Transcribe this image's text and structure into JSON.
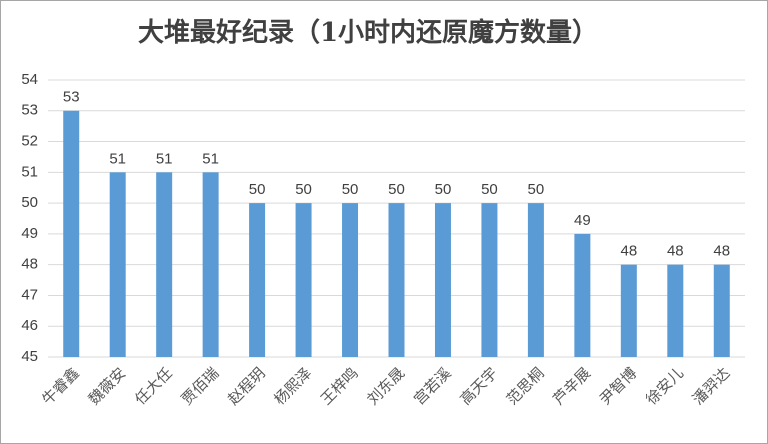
{
  "chart_data": {
    "type": "bar",
    "title": "大堆最好纪录（1小时内还原魔方数量）",
    "categories": [
      "牛睿鑫",
      "魏薇安",
      "任大任",
      "贾佰瑞",
      "赵程玥",
      "杨熙泽",
      "王梓鸣",
      "刘东晟",
      "宫若溪",
      "高天宇",
      "范思桐",
      "芦辛展",
      "尹智博",
      "徐安儿",
      "潘羿达"
    ],
    "values": [
      53,
      51,
      51,
      51,
      50,
      50,
      50,
      50,
      50,
      50,
      50,
      49,
      48,
      48,
      48
    ],
    "color": "#5b9bd5",
    "ylim": [
      45,
      54
    ],
    "yticks": [
      45,
      46,
      47,
      48,
      49,
      50,
      51,
      52,
      53,
      54
    ],
    "grid": true
  }
}
